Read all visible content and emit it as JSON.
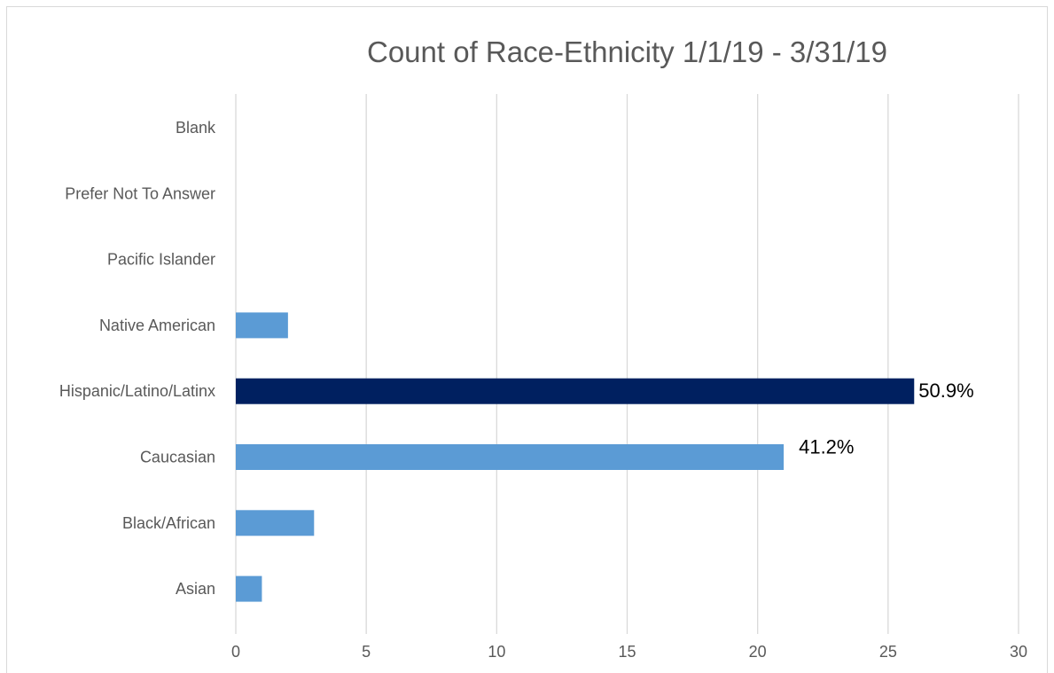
{
  "chart_data": {
    "type": "bar",
    "orientation": "horizontal",
    "title": "Count of Race-Ethnicity 1/1/19 - 3/31/19",
    "xlabel": "",
    "ylabel": "",
    "categories": [
      "Blank",
      "Prefer Not To Answer",
      "Pacific Islander",
      "Native American",
      "Hispanic/Latino/Latinx",
      "Caucasian",
      "Black/African",
      "Asian"
    ],
    "values": [
      0,
      0,
      0,
      2,
      26,
      21,
      3,
      1
    ],
    "data_labels": [
      "",
      "",
      "",
      "",
      "50.9%",
      "41.2%",
      "",
      ""
    ],
    "bar_colors": [
      "#5b9bd5",
      "#5b9bd5",
      "#5b9bd5",
      "#5b9bd5",
      "#002060",
      "#5b9bd5",
      "#5b9bd5",
      "#5b9bd5"
    ],
    "x_ticks": [
      0,
      5,
      10,
      15,
      20,
      25,
      30
    ],
    "xlim": [
      0,
      30
    ],
    "grid": "vertical",
    "legend": "none"
  }
}
